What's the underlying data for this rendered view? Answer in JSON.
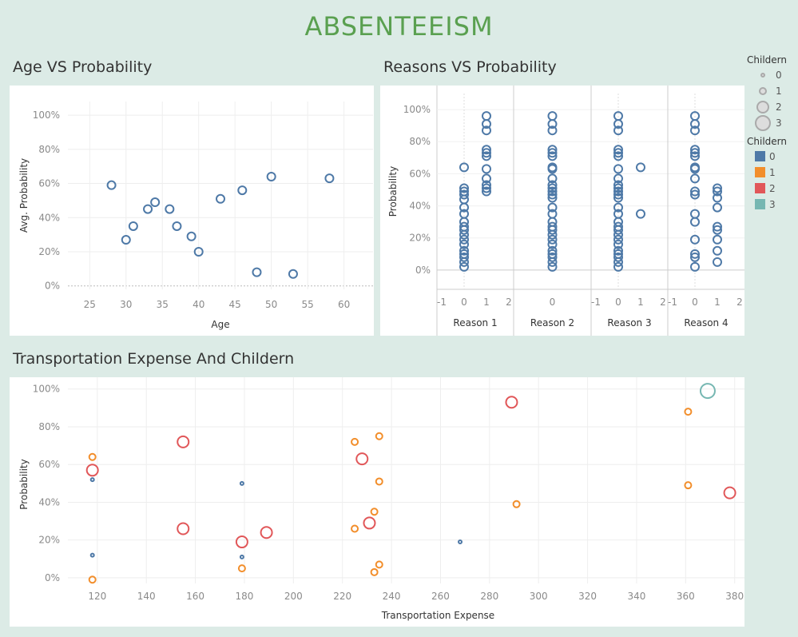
{
  "dashboard": {
    "title": "ABSENTEEISM"
  },
  "sections": {
    "age": "Age VS Probability",
    "reasons": "Reasons VS Probability",
    "transport": "Transportation Expense And Childern"
  },
  "legends": {
    "size": {
      "title": "Childern",
      "items": [
        "0",
        "1",
        "2",
        "3"
      ]
    },
    "color": {
      "title": "Childern",
      "items": [
        "0",
        "1",
        "2",
        "3"
      ],
      "colors": [
        "#4e79a7",
        "#f28e2b",
        "#e15759",
        "#76b7b2"
      ]
    }
  },
  "chart_data": [
    {
      "type": "scatter",
      "title": "Age VS Probability",
      "xlabel": "Age",
      "ylabel": "Avg. Probability",
      "xticks": [
        "25",
        "30",
        "35",
        "40",
        "45",
        "50",
        "55",
        "60"
      ],
      "yticks": [
        "0%",
        "20%",
        "40%",
        "60%",
        "80%",
        "100%"
      ],
      "xlim": [
        22,
        64
      ],
      "ylim": [
        -0.02,
        1.08
      ],
      "color": "#4e79a7",
      "points": [
        {
          "x": 28,
          "y": 0.59
        },
        {
          "x": 30,
          "y": 0.27
        },
        {
          "x": 31,
          "y": 0.35
        },
        {
          "x": 33,
          "y": 0.45
        },
        {
          "x": 34,
          "y": 0.49
        },
        {
          "x": 36,
          "y": 0.45
        },
        {
          "x": 37,
          "y": 0.35
        },
        {
          "x": 39,
          "y": 0.29
        },
        {
          "x": 40,
          "y": 0.2
        },
        {
          "x": 43,
          "y": 0.51
        },
        {
          "x": 46,
          "y": 0.56
        },
        {
          "x": 48,
          "y": 0.08
        },
        {
          "x": 50,
          "y": 0.64
        },
        {
          "x": 53,
          "y": 0.07
        },
        {
          "x": 58,
          "y": 0.63
        }
      ]
    },
    {
      "type": "scatter",
      "title": "Reasons VS Probability",
      "ylabel": "Probability",
      "yticks": [
        "0%",
        "20%",
        "40%",
        "60%",
        "80%",
        "100%"
      ],
      "ylim": [
        -0.12,
        1.1
      ],
      "xlim": [
        -1,
        2
      ],
      "xticks": [
        "-1",
        "0",
        "1",
        "2"
      ],
      "color": "#4e79a7",
      "facets": [
        {
          "label": "Reason 1",
          "x0": [
            0.02,
            0.05,
            0.08,
            0.1,
            0.12,
            0.16,
            0.19,
            0.22,
            0.25,
            0.27,
            0.3,
            0.35,
            0.39,
            0.44,
            0.47,
            0.49,
            0.51,
            0.64
          ],
          "x1": [
            0.49,
            0.51,
            0.53,
            0.57,
            0.63,
            0.71,
            0.73,
            0.75,
            0.87,
            0.91,
            0.96
          ]
        },
        {
          "label": "Reason 2",
          "x0": [
            0.02,
            0.05,
            0.08,
            0.1,
            0.12,
            0.16,
            0.19,
            0.22,
            0.25,
            0.27,
            0.3,
            0.35,
            0.39,
            0.45,
            0.47,
            0.49,
            0.51,
            0.53,
            0.57,
            0.63,
            0.64,
            0.71,
            0.73,
            0.75,
            0.87,
            0.91,
            0.96
          ],
          "x1": []
        },
        {
          "label": "Reason 3",
          "x0": [
            0.02,
            0.05,
            0.08,
            0.1,
            0.12,
            0.16,
            0.19,
            0.22,
            0.25,
            0.27,
            0.3,
            0.35,
            0.39,
            0.45,
            0.47,
            0.49,
            0.51,
            0.53,
            0.57,
            0.63,
            0.71,
            0.73,
            0.75,
            0.87,
            0.91,
            0.96
          ],
          "x1": [
            0.35,
            0.64
          ]
        },
        {
          "label": "Reason 4",
          "x0": [
            0.02,
            0.08,
            0.1,
            0.19,
            0.3,
            0.35,
            0.47,
            0.49,
            0.57,
            0.63,
            0.64,
            0.71,
            0.73,
            0.75,
            0.87,
            0.91,
            0.96
          ],
          "x1": [
            0.05,
            0.12,
            0.19,
            0.25,
            0.27,
            0.39,
            0.45,
            0.49,
            0.51
          ]
        }
      ]
    },
    {
      "type": "scatter",
      "title": "Transportation Expense And Childern",
      "xlabel": "Transportation Expense",
      "ylabel": "Probability",
      "xticks": [
        "120",
        "140",
        "160",
        "180",
        "200",
        "220",
        "240",
        "260",
        "280",
        "300",
        "320",
        "340",
        "360",
        "380"
      ],
      "yticks": [
        "0%",
        "20%",
        "40%",
        "60%",
        "80%",
        "100%"
      ],
      "xlim": [
        108,
        384
      ],
      "ylim": [
        -0.03,
        1.02
      ],
      "points": [
        {
          "x": 118,
          "y": 0.52,
          "c": 0
        },
        {
          "x": 118,
          "y": 0.12,
          "c": 0
        },
        {
          "x": 179,
          "y": 0.5,
          "c": 0
        },
        {
          "x": 179,
          "y": 0.11,
          "c": 0
        },
        {
          "x": 268,
          "y": 0.19,
          "c": 0
        },
        {
          "x": 118,
          "y": 0.64,
          "c": 1
        },
        {
          "x": 118,
          "y": -0.01,
          "c": 1
        },
        {
          "x": 179,
          "y": 0.05,
          "c": 1
        },
        {
          "x": 225,
          "y": 0.72,
          "c": 1
        },
        {
          "x": 225,
          "y": 0.26,
          "c": 1
        },
        {
          "x": 233,
          "y": 0.03,
          "c": 1
        },
        {
          "x": 233,
          "y": 0.35,
          "c": 1
        },
        {
          "x": 235,
          "y": 0.75,
          "c": 1
        },
        {
          "x": 235,
          "y": 0.51,
          "c": 1
        },
        {
          "x": 235,
          "y": 0.07,
          "c": 1
        },
        {
          "x": 291,
          "y": 0.39,
          "c": 1
        },
        {
          "x": 361,
          "y": 0.88,
          "c": 1
        },
        {
          "x": 361,
          "y": 0.49,
          "c": 1
        },
        {
          "x": 118,
          "y": 0.57,
          "c": 2
        },
        {
          "x": 155,
          "y": 0.72,
          "c": 2
        },
        {
          "x": 155,
          "y": 0.26,
          "c": 2
        },
        {
          "x": 179,
          "y": 0.19,
          "c": 2
        },
        {
          "x": 189,
          "y": 0.24,
          "c": 2
        },
        {
          "x": 228,
          "y": 0.63,
          "c": 2
        },
        {
          "x": 231,
          "y": 0.29,
          "c": 2
        },
        {
          "x": 289,
          "y": 0.93,
          "c": 2
        },
        {
          "x": 378,
          "y": 0.45,
          "c": 2
        },
        {
          "x": 369,
          "y": 0.99,
          "c": 3
        }
      ]
    }
  ]
}
